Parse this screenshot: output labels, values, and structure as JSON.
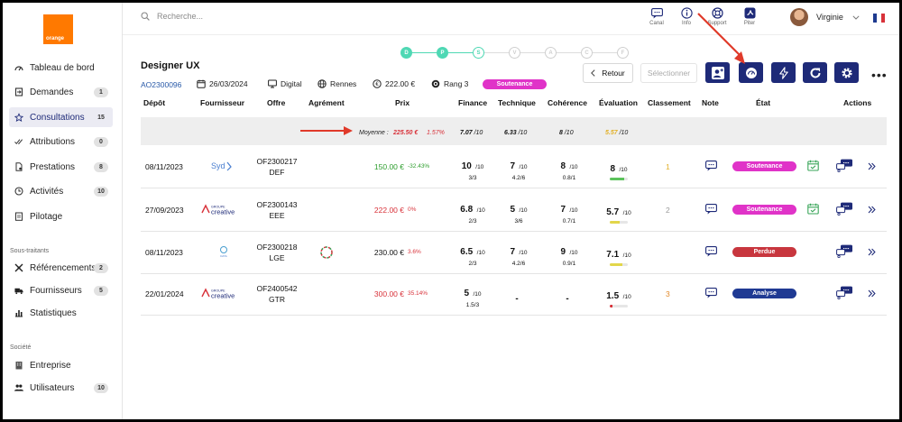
{
  "sidebar": {
    "logo_text": "orange",
    "items": [
      {
        "label": "Tableau de bord",
        "count": "",
        "icon": "gauge-icon"
      },
      {
        "label": "Demandes",
        "count": "1",
        "icon": "inbox-icon"
      },
      {
        "label": "Consultations",
        "count": "15",
        "icon": "star-icon"
      },
      {
        "label": "Attributions",
        "count": "0",
        "icon": "check-icon"
      },
      {
        "label": "Prestations",
        "count": "8",
        "icon": "document-icon"
      },
      {
        "label": "Activités",
        "count": "10",
        "icon": "clock-icon"
      },
      {
        "label": "Pilotage",
        "count": "",
        "icon": "clipboard-icon"
      }
    ],
    "section_subcontractors": "Sous-traitants",
    "sub_items": [
      {
        "label": "Référencements",
        "count": "2"
      },
      {
        "label": "Fournisseurs",
        "count": "5"
      },
      {
        "label": "Statistiques",
        "count": ""
      }
    ],
    "section_company": "Société",
    "company_items": [
      {
        "label": "Entreprise",
        "count": ""
      },
      {
        "label": "Utilisateurs",
        "count": "10"
      }
    ]
  },
  "topbar": {
    "search_placeholder": "Recherche...",
    "tools": [
      {
        "label": "Canal"
      },
      {
        "label": "Info"
      },
      {
        "label": "Support"
      },
      {
        "label": "Piter"
      }
    ],
    "user_name": "Virginie"
  },
  "steps": [
    "D",
    "P",
    "S",
    "V",
    "A",
    "C",
    "F"
  ],
  "header": {
    "title": "Designer UX",
    "reference": "AO2300096",
    "date": "26/03/2024",
    "channel": "Digital",
    "city": "Rennes",
    "amount": "222.00 €",
    "rank": "Rang 3",
    "status": "Soutenance",
    "back_label": "Retour",
    "select_label": "Sélectionner"
  },
  "table": {
    "headers": [
      "Dépôt",
      "Fournisseur",
      "Offre",
      "Agrément",
      "Prix",
      "Finance",
      "Technique",
      "Cohérence",
      "Évaluation",
      "Classement",
      "Note",
      "État",
      "Actions"
    ],
    "average": {
      "label": "Moyenne :",
      "price": "225.50 €",
      "price_pct": "1.57%",
      "finance": "7.07",
      "technique": "6.33",
      "coherence": "8",
      "evaluation": "5.57",
      "out_of": "/10"
    },
    "rows": [
      {
        "date": "08/11/2023",
        "supplier": "Synd",
        "offer_code": "OF2300217",
        "offer_name": "DEF",
        "price": "150.00 €",
        "price_pct": "-32.43%",
        "price_color": "#2e9e2e",
        "finance": "10",
        "finance_sub": "3/3",
        "technique": "7",
        "technique_sub": "4.2/6",
        "coherence": "8",
        "coherence_sub": "0.8/1",
        "evaluation": "8",
        "eval_pct": 0.8,
        "eval_color": "#5cc35c",
        "rank": "1",
        "rank_color": "#e2b12a",
        "status": "Soutenance",
        "status_color": "#e033c8"
      },
      {
        "date": "27/09/2023",
        "supplier": "Groupe Créative",
        "offer_code": "OF2300143",
        "offer_name": "EEE",
        "price": "222.00 €",
        "price_pct": "0%",
        "price_color": "#d8323a",
        "finance": "6.8",
        "finance_sub": "2/3",
        "technique": "5",
        "technique_sub": "3/6",
        "coherence": "7",
        "coherence_sub": "0.7/1",
        "evaluation": "5.7",
        "eval_pct": 0.57,
        "eval_color": "#e2d64a",
        "rank": "2",
        "rank_color": "#999999",
        "status": "Soutenance",
        "status_color": "#e033c8"
      },
      {
        "date": "08/11/2023",
        "supplier": "Data & Co",
        "offer_code": "OF2300218",
        "offer_name": "LGE",
        "price": "230.00 €",
        "price_pct": "3.6%",
        "price_color": "#111111",
        "finance": "6.5",
        "finance_sub": "2/3",
        "technique": "7",
        "technique_sub": "4.2/6",
        "coherence": "9",
        "coherence_sub": "0.9/1",
        "evaluation": "7.1",
        "eval_pct": 0.71,
        "eval_color": "#e2d64a",
        "rank": "",
        "rank_color": "#999999",
        "status": "Perdue",
        "status_color": "#c8363e"
      },
      {
        "date": "22/01/2024",
        "supplier": "Groupe Créative",
        "offer_code": "OF2400542",
        "offer_name": "GTR",
        "price": "300.00 €",
        "price_pct": "35.14%",
        "price_color": "#d8323a",
        "finance": "5",
        "finance_sub": "1.5/3",
        "technique": "-",
        "technique_sub": "",
        "coherence": "-",
        "coherence_sub": "",
        "evaluation": "1.5",
        "eval_pct": 0.15,
        "eval_color": "#d8323a",
        "rank": "3",
        "rank_color": "#e2892a",
        "status": "Analyse",
        "status_color": "#1f3a93"
      }
    ]
  },
  "colors": {
    "brand": "#ff7900",
    "primary": "#1e2a78",
    "step_done": "#4fd8b4",
    "annotation_arrow": "#e03a2a"
  }
}
